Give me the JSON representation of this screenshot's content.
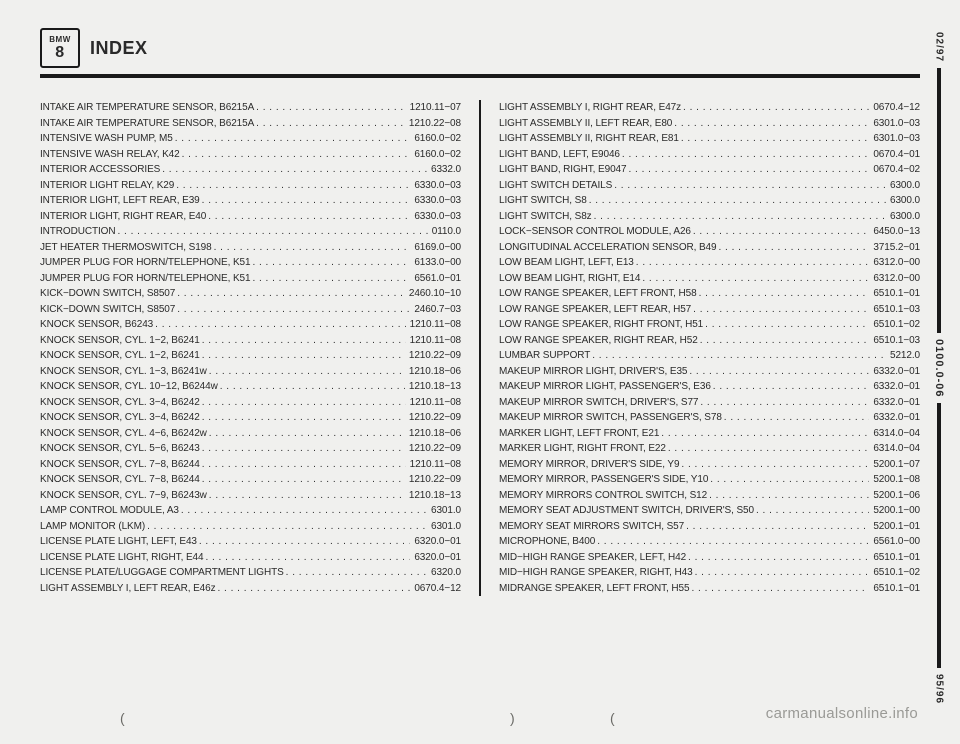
{
  "header": {
    "logo_top": "BMW",
    "logo_main": "8",
    "title": "INDEX"
  },
  "side": {
    "top": "02/97",
    "mid": "0100.0-06",
    "bottom": "95/96"
  },
  "watermark": "carmanualsonline.info",
  "left_column": [
    {
      "label": "INTAKE AIR TEMPERATURE SENSOR, B6215A",
      "ref": "1210.11−07"
    },
    {
      "label": "INTAKE AIR TEMPERATURE SENSOR, B6215A",
      "ref": "1210.22−08"
    },
    {
      "label": "INTENSIVE WASH PUMP, M5",
      "ref": "6160.0−02"
    },
    {
      "label": "INTENSIVE WASH RELAY, K42",
      "ref": "6160.0−02"
    },
    {
      "label": "INTERIOR ACCESSORIES",
      "ref": "6332.0"
    },
    {
      "label": "INTERIOR LIGHT RELAY, K29",
      "ref": "6330.0−03"
    },
    {
      "label": "INTERIOR LIGHT, LEFT REAR, E39",
      "ref": "6330.0−03"
    },
    {
      "label": "INTERIOR LIGHT, RIGHT REAR, E40",
      "ref": "6330.0−03"
    },
    {
      "label": "INTRODUCTION",
      "ref": "0110.0"
    },
    {
      "label": "JET HEATER THERMOSWITCH, S198",
      "ref": "6169.0−00"
    },
    {
      "label": "JUMPER PLUG FOR HORN/TELEPHONE, K51",
      "ref": "6133.0−00"
    },
    {
      "label": "JUMPER PLUG FOR HORN/TELEPHONE, K51",
      "ref": "6561.0−01"
    },
    {
      "label": "KICK−DOWN SWITCH, S8507",
      "ref": "2460.10−10"
    },
    {
      "label": "KICK−DOWN SWITCH, S8507",
      "ref": "2460.7−03"
    },
    {
      "label": "KNOCK SENSOR, B6243",
      "ref": "1210.11−08"
    },
    {
      "label": "KNOCK SENSOR, CYL. 1−2, B6241",
      "ref": "1210.11−08"
    },
    {
      "label": "KNOCK SENSOR, CYL. 1−2, B6241",
      "ref": "1210.22−09"
    },
    {
      "label": "KNOCK SENSOR, CYL. 1−3, B6241w",
      "ref": "1210.18−06"
    },
    {
      "label": "KNOCK SENSOR, CYL. 10−12, B6244w",
      "ref": "1210.18−13"
    },
    {
      "label": "KNOCK SENSOR, CYL. 3−4, B6242",
      "ref": "1210.11−08"
    },
    {
      "label": "KNOCK SENSOR, CYL. 3−4, B6242",
      "ref": "1210.22−09"
    },
    {
      "label": "KNOCK SENSOR, CYL. 4−6, B6242w",
      "ref": "1210.18−06"
    },
    {
      "label": "KNOCK SENSOR, CYL. 5−6, B6243",
      "ref": "1210.22−09"
    },
    {
      "label": "KNOCK SENSOR, CYL. 7−8, B6244",
      "ref": "1210.11−08"
    },
    {
      "label": "KNOCK SENSOR, CYL. 7−8, B6244",
      "ref": "1210.22−09"
    },
    {
      "label": "KNOCK SENSOR, CYL. 7−9, B6243w",
      "ref": "1210.18−13"
    },
    {
      "label": "LAMP CONTROL MODULE, A3",
      "ref": "6301.0"
    },
    {
      "label": "LAMP MONITOR (LKM)",
      "ref": "6301.0"
    },
    {
      "label": "LICENSE PLATE LIGHT, LEFT, E43",
      "ref": "6320.0−01"
    },
    {
      "label": "LICENSE PLATE LIGHT, RIGHT, E44",
      "ref": "6320.0−01"
    },
    {
      "label": "LICENSE PLATE/LUGGAGE COMPARTMENT LIGHTS",
      "ref": "6320.0"
    },
    {
      "label": "LIGHT ASSEMBLY I, LEFT REAR, E46z",
      "ref": "0670.4−12"
    }
  ],
  "right_column": [
    {
      "label": "LIGHT ASSEMBLY I, RIGHT REAR, E47z",
      "ref": "0670.4−12"
    },
    {
      "label": "LIGHT ASSEMBLY II, LEFT REAR, E80",
      "ref": "6301.0−03"
    },
    {
      "label": "LIGHT ASSEMBLY II, RIGHT REAR, E81",
      "ref": "6301.0−03"
    },
    {
      "label": "LIGHT BAND, LEFT, E9046",
      "ref": "0670.4−01"
    },
    {
      "label": "LIGHT BAND, RIGHT, E9047",
      "ref": "0670.4−02"
    },
    {
      "label": "LIGHT SWITCH DETAILS",
      "ref": "6300.0"
    },
    {
      "label": "LIGHT SWITCH, S8",
      "ref": "6300.0"
    },
    {
      "label": "LIGHT SWITCH, S8z",
      "ref": "6300.0"
    },
    {
      "label": "LOCK−SENSOR CONTROL MODULE, A26",
      "ref": "6450.0−13"
    },
    {
      "label": "LONGITUDINAL ACCELERATION SENSOR, B49",
      "ref": "3715.2−01"
    },
    {
      "label": "LOW BEAM LIGHT, LEFT, E13",
      "ref": "6312.0−00"
    },
    {
      "label": "LOW BEAM LIGHT, RIGHT, E14",
      "ref": "6312.0−00"
    },
    {
      "label": "LOW RANGE SPEAKER, LEFT FRONT, H58",
      "ref": "6510.1−01"
    },
    {
      "label": "LOW RANGE SPEAKER, LEFT REAR, H57",
      "ref": "6510.1−03"
    },
    {
      "label": "LOW RANGE SPEAKER, RIGHT FRONT, H51",
      "ref": "6510.1−02"
    },
    {
      "label": "LOW RANGE SPEAKER, RIGHT REAR, H52",
      "ref": "6510.1−03"
    },
    {
      "label": "LUMBAR SUPPORT",
      "ref": "5212.0"
    },
    {
      "label": "MAKEUP MIRROR LIGHT, DRIVER'S, E35",
      "ref": "6332.0−01"
    },
    {
      "label": "MAKEUP MIRROR LIGHT, PASSENGER'S, E36",
      "ref": "6332.0−01"
    },
    {
      "label": "MAKEUP MIRROR SWITCH, DRIVER'S, S77",
      "ref": "6332.0−01"
    },
    {
      "label": "MAKEUP MIRROR SWITCH, PASSENGER'S, S78",
      "ref": "6332.0−01"
    },
    {
      "label": "MARKER LIGHT, LEFT FRONT, E21",
      "ref": "6314.0−04"
    },
    {
      "label": "MARKER LIGHT, RIGHT FRONT, E22",
      "ref": "6314.0−04"
    },
    {
      "label": "MEMORY MIRROR, DRIVER'S SIDE, Y9",
      "ref": "5200.1−07"
    },
    {
      "label": "MEMORY MIRROR, PASSENGER'S SIDE, Y10",
      "ref": "5200.1−08"
    },
    {
      "label": "MEMORY MIRRORS CONTROL SWITCH, S12",
      "ref": "5200.1−06"
    },
    {
      "label": "MEMORY SEAT ADJUSTMENT SWITCH, DRIVER'S, S50",
      "ref": "5200.1−00"
    },
    {
      "label": "MEMORY SEAT MIRRORS SWITCH, S57",
      "ref": "5200.1−01"
    },
    {
      "label": "MICROPHONE, B400",
      "ref": "6561.0−00"
    },
    {
      "label": "MID−HIGH RANGE SPEAKER, LEFT, H42",
      "ref": "6510.1−01"
    },
    {
      "label": "MID−HIGH RANGE SPEAKER, RIGHT, H43",
      "ref": "6510.1−02"
    },
    {
      "label": "MIDRANGE SPEAKER, LEFT FRONT, H55",
      "ref": "6510.1−01"
    }
  ]
}
